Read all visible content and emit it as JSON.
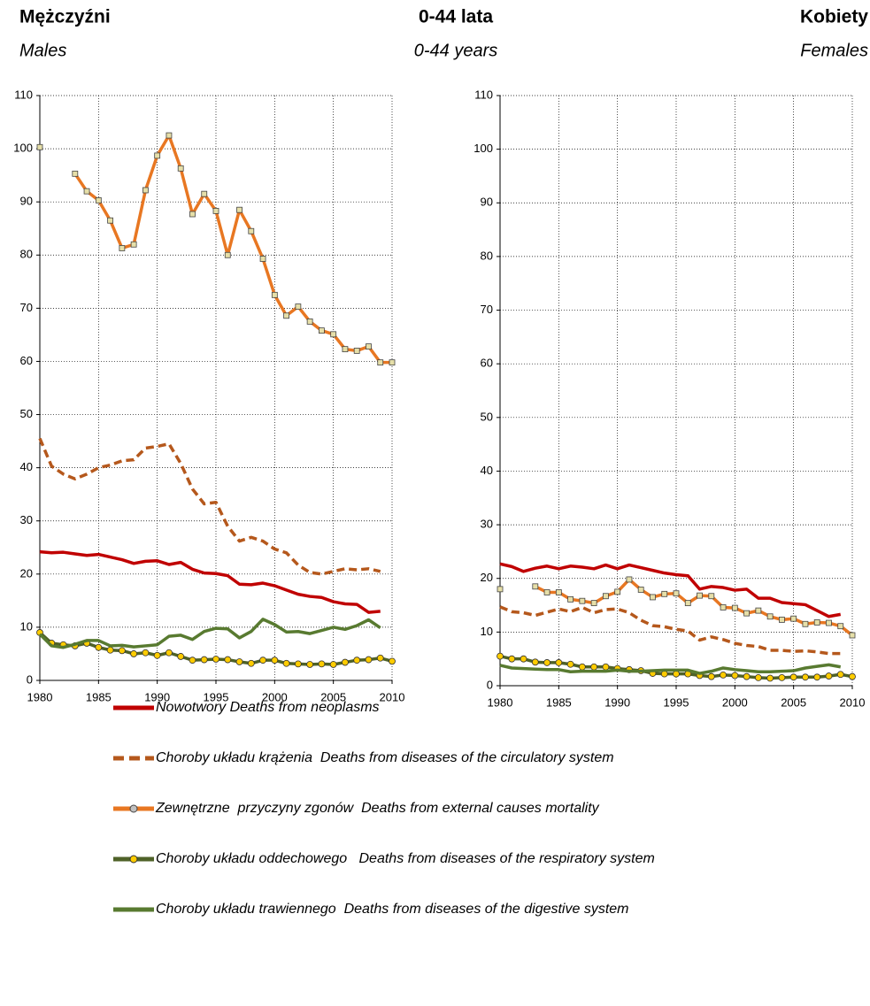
{
  "header": {
    "title": "0-44 lata",
    "subtitle": "0-44 years"
  },
  "chart_data": [
    {
      "type": "line",
      "title": "Mężczyźni",
      "subtitle": "Males",
      "x": [
        1980,
        1981,
        1982,
        1983,
        1984,
        1985,
        1986,
        1987,
        1988,
        1989,
        1990,
        1991,
        1992,
        1993,
        1994,
        1995,
        1996,
        1997,
        1998,
        1999,
        2000,
        2001,
        2002,
        2003,
        2004,
        2005,
        2006,
        2007,
        2008,
        2009,
        2010
      ],
      "xlim": [
        1980,
        2010
      ],
      "xticks": [
        1980,
        1985,
        1990,
        1995,
        2000,
        2005,
        2010
      ],
      "ylim": [
        0,
        110
      ],
      "yticks": [
        0,
        10,
        20,
        30,
        40,
        50,
        60,
        70,
        80,
        90,
        100,
        110
      ],
      "grid": true,
      "series": [
        {
          "name": "Nowotwory Deaths from neoplasms",
          "color": "#c00000",
          "dash": false,
          "marker": "none",
          "values": [
            24.2,
            24.0,
            24.1,
            23.8,
            23.5,
            23.7,
            23.2,
            22.7,
            22.0,
            22.4,
            22.5,
            21.8,
            22.2,
            20.9,
            20.2,
            20.1,
            19.7,
            18.1,
            18.0,
            18.3,
            17.8,
            17.0,
            16.2,
            15.8,
            15.6,
            14.8,
            14.4,
            14.3,
            12.8,
            13.0,
            null
          ]
        },
        {
          "name": "Choroby układu krążenia  Deaths from diseases of the circulatory system",
          "color": "#b5581c",
          "dash": true,
          "marker": "none",
          "values": [
            45.5,
            40.3,
            38.8,
            37.9,
            38.8,
            40.0,
            40.5,
            41.3,
            41.5,
            43.7,
            44.0,
            44.5,
            40.8,
            36.0,
            33.2,
            33.5,
            29.0,
            26.2,
            26.9,
            26.2,
            24.7,
            24.0,
            21.7,
            20.3,
            20.0,
            20.5,
            21.0,
            20.8,
            21.0,
            20.5,
            null
          ]
        },
        {
          "name": "Zewnętrzne  przyczyny zgonów  Deaths from external causes mortality",
          "color": "#e87722",
          "dash": false,
          "marker": "square",
          "values": [
            100.3,
            null,
            null,
            95.3,
            92.0,
            90.3,
            86.5,
            81.3,
            82.0,
            92.2,
            98.7,
            102.5,
            96.3,
            87.7,
            91.5,
            88.3,
            80.0,
            88.5,
            84.5,
            79.3,
            72.5,
            68.6,
            70.3,
            67.5,
            65.8,
            65.1,
            62.3,
            62.0,
            62.8,
            59.8,
            59.8
          ]
        },
        {
          "name": "Choroby układu oddechowego   Deaths from diseases of the respiratory system",
          "color": "#4f6228",
          "dash": false,
          "marker": "circle",
          "values": [
            9.0,
            7.0,
            6.7,
            6.5,
            7.0,
            6.2,
            5.7,
            5.6,
            5.0,
            5.2,
            4.7,
            5.2,
            4.5,
            3.8,
            3.9,
            4.0,
            3.9,
            3.5,
            3.2,
            3.8,
            3.8,
            3.2,
            3.1,
            3.0,
            3.1,
            3.0,
            3.4,
            3.8,
            3.9,
            4.2,
            3.6
          ]
        },
        {
          "name": "Choroby układu trawiennego  Deaths from diseases of the digestive system",
          "color": "#587a30",
          "dash": false,
          "marker": "none",
          "values": [
            8.7,
            6.5,
            6.2,
            6.8,
            7.5,
            7.5,
            6.5,
            6.6,
            6.3,
            6.5,
            6.7,
            8.3,
            8.5,
            7.7,
            9.2,
            9.8,
            9.7,
            8.0,
            9.2,
            11.5,
            10.5,
            9.1,
            9.2,
            8.8,
            9.4,
            10.0,
            9.6,
            10.3,
            11.4,
            9.9,
            null
          ]
        }
      ]
    },
    {
      "type": "line",
      "title": "Kobiety",
      "subtitle": "Females",
      "x": [
        1980,
        1981,
        1982,
        1983,
        1984,
        1985,
        1986,
        1987,
        1988,
        1989,
        1990,
        1991,
        1992,
        1993,
        1994,
        1995,
        1996,
        1997,
        1998,
        1999,
        2000,
        2001,
        2002,
        2003,
        2004,
        2005,
        2006,
        2007,
        2008,
        2009,
        2010
      ],
      "xlim": [
        1980,
        2010
      ],
      "xticks": [
        1980,
        1985,
        1990,
        1995,
        2000,
        2005,
        2010
      ],
      "ylim": [
        0,
        110
      ],
      "yticks": [
        0,
        10,
        20,
        30,
        40,
        50,
        60,
        70,
        80,
        90,
        100,
        110
      ],
      "grid": true,
      "series": [
        {
          "color": "#c00000",
          "dash": false,
          "marker": "none",
          "values": [
            22.7,
            22.2,
            21.3,
            21.9,
            22.3,
            21.8,
            22.3,
            22.1,
            21.8,
            22.5,
            21.8,
            22.5,
            22.0,
            21.5,
            21.0,
            20.7,
            20.5,
            18.0,
            18.5,
            18.3,
            17.8,
            18.0,
            16.3,
            16.3,
            15.5,
            15.3,
            15.1,
            14.0,
            12.9,
            13.3,
            null
          ]
        },
        {
          "color": "#b5581c",
          "dash": true,
          "marker": "none",
          "values": [
            14.7,
            13.8,
            13.6,
            13.1,
            13.7,
            14.3,
            13.8,
            14.6,
            13.6,
            14.2,
            14.3,
            13.6,
            12.2,
            11.2,
            11.0,
            10.5,
            10.2,
            8.5,
            9.1,
            8.6,
            7.9,
            7.5,
            7.3,
            6.6,
            6.6,
            6.4,
            6.5,
            6.3,
            6.0,
            6.0,
            null
          ]
        },
        {
          "color": "#e87722",
          "dash": false,
          "marker": "square",
          "values": [
            18.0,
            null,
            null,
            18.5,
            17.4,
            17.4,
            16.1,
            15.8,
            15.4,
            16.7,
            17.5,
            19.8,
            17.9,
            16.5,
            17.1,
            17.2,
            15.4,
            16.8,
            16.7,
            14.6,
            14.5,
            13.5,
            14.0,
            12.9,
            12.3,
            12.5,
            11.5,
            11.8,
            11.7,
            11.1,
            9.4
          ]
        },
        {
          "color": "#4f6228",
          "dash": false,
          "marker": "circle",
          "values": [
            5.5,
            5.0,
            5.0,
            4.4,
            4.3,
            4.3,
            4.0,
            3.5,
            3.5,
            3.5,
            3.2,
            3.0,
            2.8,
            2.3,
            2.2,
            2.2,
            2.2,
            1.9,
            1.7,
            2.0,
            1.9,
            1.7,
            1.5,
            1.4,
            1.5,
            1.6,
            1.6,
            1.6,
            1.8,
            2.1,
            1.7
          ]
        },
        {
          "color": "#587a30",
          "dash": false,
          "marker": "none",
          "values": [
            3.8,
            3.3,
            3.2,
            3.1,
            3.0,
            3.0,
            2.6,
            2.7,
            2.7,
            2.7,
            2.9,
            2.7,
            2.7,
            2.8,
            2.9,
            2.9,
            2.9,
            2.3,
            2.7,
            3.3,
            3.0,
            2.8,
            2.6,
            2.6,
            2.7,
            2.8,
            3.3,
            3.6,
            3.9,
            3.5,
            null
          ]
        }
      ]
    }
  ]
}
